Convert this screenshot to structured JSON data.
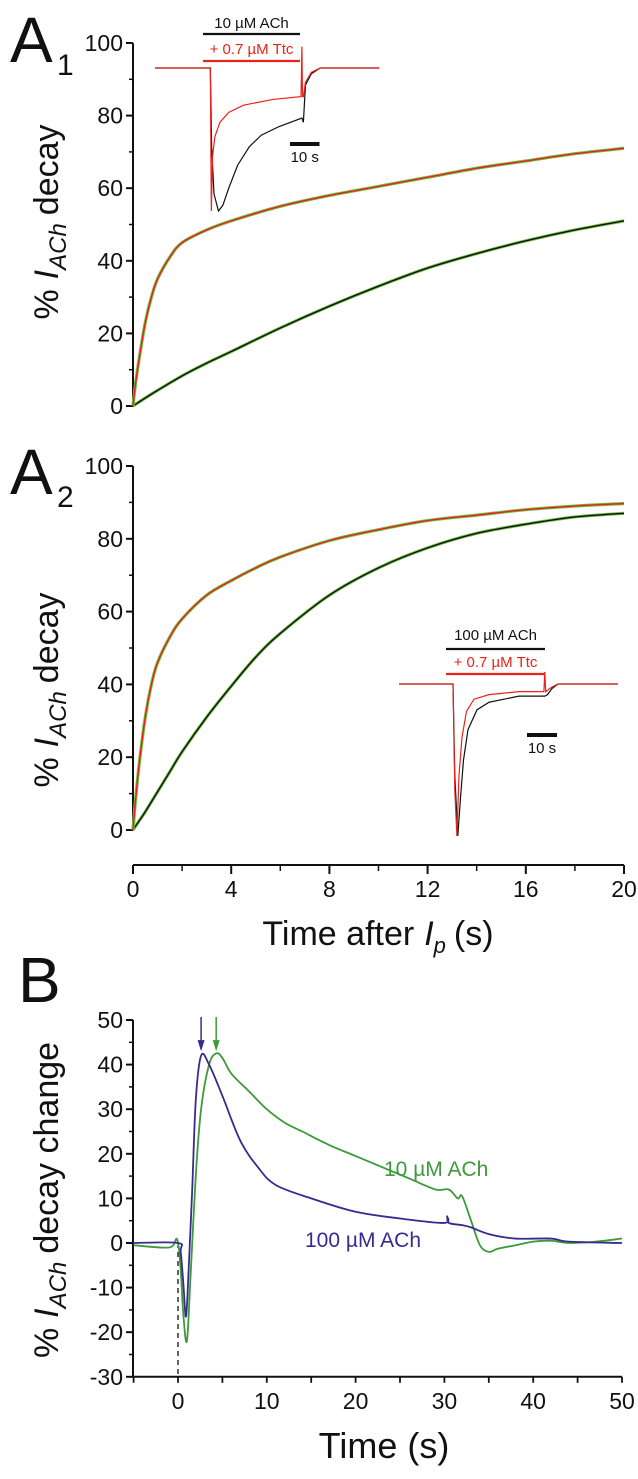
{
  "colors": {
    "ttc": "#e8231a",
    "control": "#111111",
    "fit": "#6fbf45",
    "b_10uM": "#3c9a3c",
    "b_100uM": "#3a2a8e"
  },
  "chart_data": [
    {
      "panel": "A",
      "panel_sub": "1",
      "type": "line",
      "ylabel": {
        "prefix": "%",
        "italic": "I",
        "sub": "ACh",
        "suffix": "decay"
      },
      "ylim": [
        0,
        100
      ],
      "yticks": [
        0,
        20,
        40,
        60,
        80,
        100
      ],
      "xlim": [
        0,
        20
      ],
      "series": [
        {
          "key": "control",
          "color_key": "control",
          "x": [
            0,
            0.5,
            1,
            2,
            3,
            4,
            6,
            8,
            10,
            12,
            14,
            16,
            18,
            20
          ],
          "y": [
            0,
            2.2,
            4.3,
            8.3,
            11.8,
            15,
            21.5,
            27.5,
            33,
            38,
            42,
            45.5,
            48.5,
            51
          ]
        },
        {
          "key": "ttc",
          "color_key": "ttc",
          "x": [
            0,
            0.1,
            0.25,
            0.5,
            0.75,
            1,
            1.5,
            2,
            3,
            4,
            6,
            8,
            10,
            12,
            14,
            16,
            18,
            20
          ],
          "y": [
            0,
            6,
            13,
            23,
            30,
            35,
            41,
            45,
            48.5,
            51,
            55,
            58,
            60.5,
            63,
            65.5,
            67.5,
            69.5,
            71
          ]
        }
      ],
      "inset": {
        "bar_labels": [
          "10 µM ACh",
          "+ 0.7 µM Ttc"
        ],
        "scale_label": "10 s",
        "scale_s": 10,
        "app_on_s": 18.75,
        "app_off_s": 50,
        "traces": [
          {
            "key": "control",
            "color_key": "control",
            "t": [
              0,
              18.75,
              19.2,
              20,
              21.5,
              23,
              25,
              28,
              32,
              36,
              42,
              49.8,
              50.3,
              51,
              53,
              56,
              76
            ],
            "i": [
              0,
              0,
              -0.55,
              -0.88,
              -1,
              -0.96,
              -0.84,
              -0.68,
              -0.55,
              -0.47,
              -0.41,
              -0.35,
              -0.38,
              -0.12,
              -0.04,
              0,
              0
            ]
          },
          {
            "key": "ttc",
            "color_key": "ttc",
            "t": [
              0,
              18.75,
              19.1,
              19.5,
              20.3,
              22,
              25,
              30,
              40,
              49.5,
              49.8,
              50,
              50.3,
              51,
              53,
              56,
              76
            ],
            "i": [
              0,
              0,
              -1,
              -0.62,
              -0.48,
              -0.38,
              -0.31,
              -0.26,
              -0.22,
              -0.2,
              0.15,
              -0.2,
              -0.2,
              -0.1,
              -0.03,
              0,
              0
            ]
          }
        ]
      }
    },
    {
      "panel": "A",
      "panel_sub": "2",
      "type": "line",
      "ylabel": {
        "prefix": "%",
        "italic": "I",
        "sub": "ACh",
        "suffix": "decay"
      },
      "xlabel": {
        "prefix": "Time after",
        "italic": "I",
        "sub": "p",
        "suffix": "(s)"
      },
      "ylim": [
        0,
        100
      ],
      "yticks": [
        0,
        20,
        40,
        60,
        80,
        100
      ],
      "xlim": [
        0,
        20
      ],
      "xticks": [
        0,
        4,
        8,
        12,
        16,
        20
      ],
      "series": [
        {
          "key": "control",
          "color_key": "control",
          "x": [
            0,
            0.25,
            0.5,
            1,
            1.5,
            2,
            3,
            4,
            5,
            6,
            8,
            10,
            12,
            14,
            16,
            18,
            20
          ],
          "y": [
            0,
            2.5,
            5,
            10.5,
            16,
            21.5,
            31,
            39.5,
            47.5,
            54,
            64.5,
            72,
            77.5,
            81.5,
            84,
            86,
            87
          ]
        },
        {
          "key": "ttc",
          "color_key": "ttc",
          "x": [
            0,
            0.1,
            0.25,
            0.5,
            0.75,
            1,
            1.5,
            2,
            3,
            4,
            5,
            6,
            8,
            10,
            12,
            14,
            16,
            18,
            20
          ],
          "y": [
            0,
            8,
            18,
            31,
            40,
            46,
            53,
            58,
            64.5,
            68.5,
            72,
            75,
            79.5,
            82.5,
            85,
            86.5,
            88,
            89,
            89.7
          ]
        }
      ],
      "inset": {
        "bar_labels": [
          "100 µM ACh",
          "+ 0.7 µM Ttc"
        ],
        "scale_label": "10 s",
        "scale_s": 10,
        "app_on_s": 18,
        "app_off_s": 48.6,
        "traces": [
          {
            "key": "control",
            "color_key": "control",
            "t": [
              0,
              18,
              18.6,
              19.6,
              20.5,
              21.5,
              23,
              26,
              30,
              40,
              48.6,
              49.5,
              51,
              53,
              73
            ],
            "i": [
              0,
              0,
              -0.6,
              -1,
              -0.75,
              -0.5,
              -0.3,
              -0.17,
              -0.12,
              -0.08,
              -0.08,
              -0.07,
              -0.03,
              0,
              0
            ]
          },
          {
            "key": "ttc",
            "color_key": "ttc",
            "t": [
              0,
              18,
              18.6,
              19.3,
              20,
              21,
              22.5,
              25,
              30,
              40,
              48.3,
              48.6,
              48.9,
              51,
              53,
              73
            ],
            "i": [
              0,
              0,
              -0.7,
              -1,
              -0.6,
              -0.35,
              -0.18,
              -0.1,
              -0.07,
              -0.05,
              -0.05,
              0.08,
              -0.05,
              -0.02,
              0,
              0
            ]
          }
        ]
      }
    },
    {
      "panel": "B",
      "type": "line",
      "ylabel": {
        "prefix": "%",
        "italic": "I",
        "sub": "ACh",
        "suffix": "decay change"
      },
      "xlabel": {
        "prefix": "Time (s)"
      },
      "ylim": [
        -30,
        50
      ],
      "yticks": [
        -30,
        -20,
        -10,
        0,
        10,
        20,
        30,
        40,
        50
      ],
      "xlim": [
        -5,
        50
      ],
      "xticks": [
        0,
        10,
        20,
        30,
        40,
        50
      ],
      "series": [
        {
          "name": "10 µM ACh",
          "color_key": "b_10uM",
          "peak_x": 4.3,
          "x": [
            -5,
            -1,
            -0.1,
            0.3,
            0.6,
            1,
            1.4,
            2,
            2.6,
            3.5,
            4.3,
            5,
            6,
            8,
            10,
            12,
            14,
            17,
            20,
            23,
            26,
            29,
            30.5,
            31.5,
            32,
            33,
            34,
            35,
            36,
            38,
            40,
            42,
            44,
            47,
            50
          ],
          "y": [
            -0.5,
            -1,
            0.8,
            -6,
            -16,
            -22,
            -8,
            15,
            30,
            40,
            42.5,
            41.5,
            38,
            34,
            30,
            27,
            25,
            22,
            19.5,
            17,
            14.5,
            12,
            12,
            10,
            10.5,
            5,
            -0.5,
            -2,
            -1.3,
            -0.5,
            0.3,
            0.5,
            0,
            0.3,
            1
          ]
        },
        {
          "name": "100 µM ACh",
          "color_key": "b_100uM",
          "peak_x": 2.6,
          "x": [
            -5,
            0,
            0.3,
            0.6,
            0.9,
            1.2,
            1.6,
            2,
            2.6,
            3.5,
            5,
            7,
            9,
            11,
            15,
            20,
            25,
            30,
            30.3,
            30.5,
            32,
            33,
            35,
            38,
            42,
            44,
            50
          ],
          "y": [
            0,
            0,
            -2,
            -9,
            -16.5,
            -6,
            12,
            32,
            42,
            40,
            33,
            23,
            17,
            13,
            10,
            7,
            5.5,
            4.5,
            6,
            4.5,
            4,
            3.5,
            2,
            1,
            1,
            0.3,
            0
          ]
        }
      ]
    }
  ]
}
